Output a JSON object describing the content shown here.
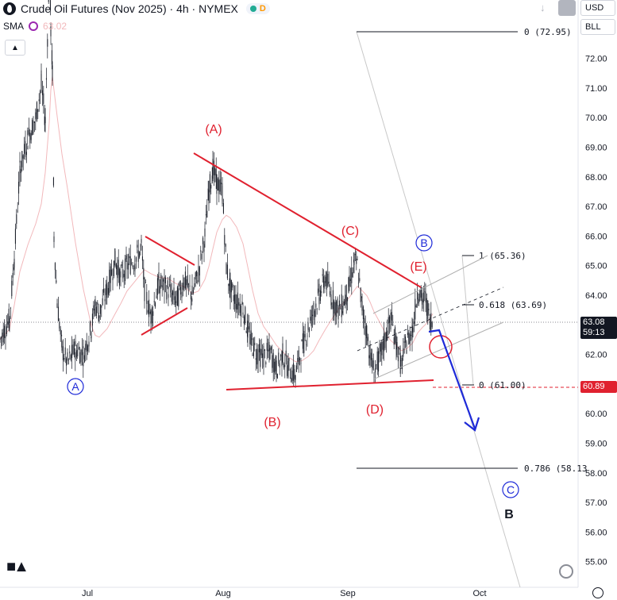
{
  "header": {
    "title": "Crude Oil Futures (Nov 2025) · 4h · NYMEX",
    "indicator": "SMA",
    "indicator_value": "63.02",
    "status_d": "D"
  },
  "toolbar": {
    "currency": "USD",
    "unit": "BLL"
  },
  "colors": {
    "up": "#131722",
    "wave_red": "#e0212f",
    "wave_blue": "#1e2ad8",
    "sma": "#f2b8bb",
    "fib": "#b0b0b0"
  },
  "current_price": {
    "value": "63.08",
    "countdown": "59:13"
  },
  "alert_price": "60.89",
  "chart_data": {
    "type": "candlestick",
    "instrument": "Crude Oil Futures (Nov 2025)",
    "timeframe": "4h",
    "exchange": "NYMEX",
    "x_ticks": [
      "Jul",
      "Aug",
      "Sep",
      "Oct"
    ],
    "y_ticks": [
      "55.00",
      "56.00",
      "57.00",
      "58.00",
      "59.00",
      "60.00",
      "61.00",
      "62.00",
      "63.00",
      "64.00",
      "65.00",
      "66.00",
      "67.00",
      "68.00",
      "69.00",
      "70.00",
      "71.00",
      "72.00"
    ],
    "ylim": [
      54.6,
      73.6
    ],
    "price_path": [
      [
        0,
        62.5
      ],
      [
        12,
        63.2
      ],
      [
        18,
        65.3
      ],
      [
        25,
        68.2
      ],
      [
        35,
        69.3
      ],
      [
        45,
        70.0
      ],
      [
        52,
        71.1
      ],
      [
        57,
        69.9
      ],
      [
        62,
        75.0
      ],
      [
        64,
        73.0
      ],
      [
        66,
        71.5
      ],
      [
        68,
        66.0
      ],
      [
        72,
        63.8
      ],
      [
        78,
        62.2
      ],
      [
        85,
        61.7
      ],
      [
        95,
        62.2
      ],
      [
        105,
        62.0
      ],
      [
        115,
        62.9
      ],
      [
        120,
        63.7
      ],
      [
        125,
        63.4
      ],
      [
        135,
        64.2
      ],
      [
        145,
        65.2
      ],
      [
        152,
        64.6
      ],
      [
        160,
        65.0
      ],
      [
        170,
        65.2
      ],
      [
        178,
        65.6
      ],
      [
        182,
        64.2
      ],
      [
        190,
        63.3
      ],
      [
        200,
        64.4
      ],
      [
        212,
        64.2
      ],
      [
        222,
        63.8
      ],
      [
        232,
        64.5
      ],
      [
        242,
        64.0
      ],
      [
        250,
        64.8
      ],
      [
        258,
        66.0
      ],
      [
        263,
        67.5
      ],
      [
        268,
        68.3
      ],
      [
        273,
        67.8
      ],
      [
        280,
        67.5
      ],
      [
        285,
        65.0
      ],
      [
        290,
        64.2
      ],
      [
        298,
        63.8
      ],
      [
        306,
        63.6
      ],
      [
        312,
        62.8
      ],
      [
        318,
        62.3
      ],
      [
        325,
        62.0
      ],
      [
        332,
        61.9
      ],
      [
        340,
        62.1
      ],
      [
        348,
        61.5
      ],
      [
        356,
        62.0
      ],
      [
        364,
        61.5
      ],
      [
        372,
        61.3
      ],
      [
        380,
        62.2
      ],
      [
        388,
        62.9
      ],
      [
        395,
        63.5
      ],
      [
        402,
        64.0
      ],
      [
        410,
        64.6
      ],
      [
        418,
        63.9
      ],
      [
        426,
        63.5
      ],
      [
        432,
        63.7
      ],
      [
        440,
        64.3
      ],
      [
        446,
        65.1
      ],
      [
        450,
        65.0
      ],
      [
        456,
        63.6
      ],
      [
        462,
        62.7
      ],
      [
        466,
        62.0
      ],
      [
        471,
        61.4
      ],
      [
        478,
        61.9
      ],
      [
        485,
        62.5
      ],
      [
        492,
        63.2
      ],
      [
        500,
        62.3
      ],
      [
        505,
        61.6
      ],
      [
        512,
        62.4
      ],
      [
        520,
        62.9
      ],
      [
        526,
        64.2
      ],
      [
        532,
        63.8
      ],
      [
        536,
        63.9
      ],
      [
        540,
        63.3
      ],
      [
        545,
        63.1
      ]
    ],
    "sma_value": 63.02,
    "waves_red": [
      "(A)",
      "(B)",
      "(C)",
      "(D)",
      "(E)"
    ],
    "waves_blue": [
      "A",
      "B",
      "C"
    ],
    "wave_black": "B",
    "fib_levels": [
      {
        "label": "0 (72.95)",
        "value": 72.95
      },
      {
        "label": "1 (65.36)",
        "value": 65.36
      },
      {
        "label": "0.618 (63.69)",
        "value": 63.69
      },
      {
        "label": "0 (61.00)",
        "value": 61.0
      },
      {
        "label": "0.786 (58.13",
        "value": 58.13
      }
    ],
    "triangle_upper": [
      [
        68.8,
        64.2
      ]
    ],
    "triangle_lower": [
      [
        60.9,
        61.1
      ]
    ]
  }
}
